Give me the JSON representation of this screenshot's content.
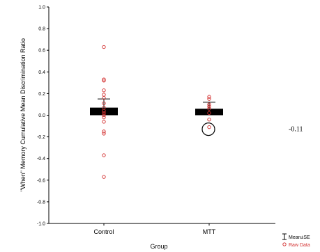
{
  "chart_data": {
    "type": "bar",
    "xlabel": "Group",
    "ylabel": "\"When\" Memory Cumulative Mean Discrimination Ratio",
    "ylim": [
      -1.0,
      1.0
    ],
    "yticks": [
      "1.0",
      "0.8",
      "0.6",
      "0.4",
      "0.2",
      "0.0",
      "-0.2",
      "-0.4",
      "-0.6",
      "-0.8",
      "-1.0"
    ],
    "categories": [
      "Control",
      "MTT"
    ],
    "series": [
      {
        "name": "Mean±SE",
        "values": [
          0.07,
          0.06
        ],
        "se_upper": [
          0.15,
          0.12
        ]
      },
      {
        "name": "Raw Data",
        "points": [
          [
            0.63,
            0.33,
            0.32,
            0.23,
            0.19,
            0.16,
            0.11,
            0.07,
            0.04,
            0.02,
            0.0,
            -0.02,
            -0.06,
            -0.15,
            -0.17,
            -0.37,
            -0.57
          ],
          [
            0.17,
            0.15,
            0.1,
            0.08,
            0.06,
            0.02,
            -0.04,
            -0.11
          ]
        ]
      }
    ],
    "annotation": {
      "text": "-0.11",
      "category": "MTT",
      "value": -0.11
    },
    "legend_position": "bottom-right",
    "colors": {
      "bar": "#000000",
      "raw_point": "#d32f2f",
      "axis": "#000000"
    }
  }
}
